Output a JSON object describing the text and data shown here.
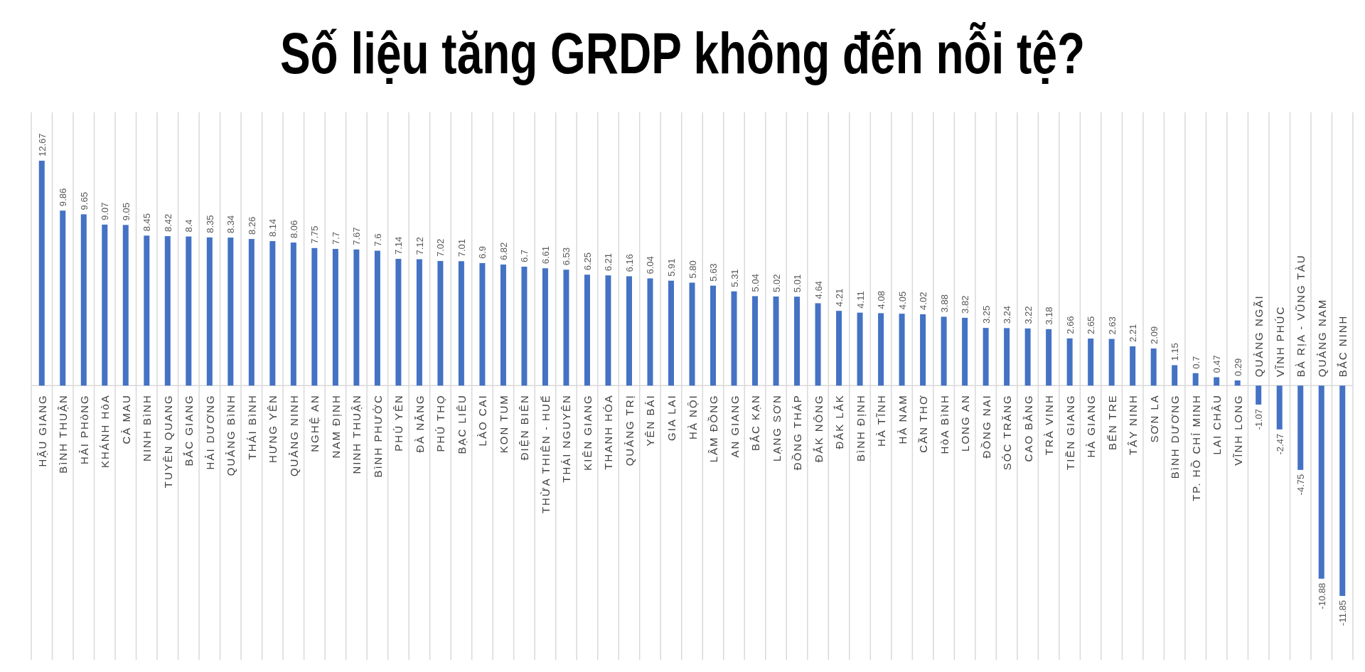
{
  "chart_data": {
    "type": "bar",
    "title": "Số liệu tăng GRDP không đến nỗi tệ?",
    "categories": [
      "HẬU GIANG",
      "BìNH THUẬN",
      "HẢI PHòNG",
      "KHÁNH HòA",
      "CÀ MAU",
      "NINH BìNH",
      "TUYÊN QUANG",
      "BẮC GIANG",
      "HẢI DƯƠNG",
      "QUẢNG BìNH",
      "THÁI BìNH",
      "HƯNG YÊN",
      "QUẢNG NINH",
      "NGHỆ AN",
      "NAM ĐỊNH",
      "NINH THUẬN",
      "BìNH PHƯỚC",
      "PHÚ YÊN",
      "ĐÀ NẴNG",
      "PHÚ THỌ",
      "BẠC LIÊU",
      "LÀO CAI",
      "KON TUM",
      "ĐIỆN BIÊN",
      "THỪA THIÊN - HUẾ",
      "THÁI NGUYÊN",
      "KIÊN GIANG",
      "THANH HÓA",
      "QUẢNG TRỊ",
      "YÊN BÁI",
      "GIA LAI",
      "HÀ NỘI",
      "LÂM ĐỒNG",
      "AN GIANG",
      "BẮC KẠN",
      "LẠNG SƠN",
      "ĐỒNG THÁP",
      "ĐẮK NÔNG",
      "ĐẮK LẮK",
      "BìNH ĐỊNH",
      "HÀ TĨNH",
      "HÀ NAM",
      "CẦN THƠ",
      "HòA BìNH",
      "LONG AN",
      "ĐỒNG NAI",
      "SÓC TRĂNG",
      "CAO BẰNG",
      "TRÀ VINH",
      "TIỀN GIANG",
      "HÀ GIANG",
      "BẾN TRE",
      "TÂY NINH",
      "SƠN LA",
      "BìNH DƯƠNG",
      "TP. HỒ CHÍ MINH",
      "LAI CHÂU",
      "VĨNH LONG",
      "QUẢNG NGÃI",
      "VĨNH PHÚC",
      "BÀ RỊA - VŨNG TÀU",
      "QUẢNG NAM",
      "BẮC NINH"
    ],
    "values": [
      12.67,
      9.86,
      9.65,
      9.07,
      9.05,
      8.45,
      8.42,
      8.4,
      8.35,
      8.34,
      8.26,
      8.14,
      8.06,
      7.75,
      7.7,
      7.67,
      7.6,
      7.14,
      7.12,
      7.02,
      7.01,
      6.9,
      6.82,
      6.7,
      6.61,
      6.53,
      6.25,
      6.21,
      6.16,
      6.04,
      5.91,
      5.8,
      5.63,
      5.31,
      5.04,
      5.02,
      5.01,
      4.64,
      4.21,
      4.11,
      4.08,
      4.05,
      4.02,
      3.88,
      3.82,
      3.25,
      3.24,
      3.22,
      3.18,
      2.66,
      2.65,
      2.63,
      2.21,
      2.09,
      1.15,
      0.7,
      0.47,
      0.29,
      -1.07,
      -2.47,
      -4.75,
      -10.88,
      -11.85
    ],
    "value_labels": [
      "12.67",
      "9.86",
      "9.65",
      "9.07",
      "9.05",
      "8.45",
      "8.42",
      "8.4",
      "8.35",
      "8.34",
      "8.26",
      "8.14",
      "8.06",
      "7.75",
      "7.7",
      "7.67",
      "7.6",
      "7.14",
      "7.12",
      "7.02",
      "7.01",
      "6.9",
      "6.82",
      "6.7",
      "6.61",
      "6.53",
      "6.25",
      "6.21",
      "6.16",
      "6.04",
      "5.91",
      "5.80",
      "5.63",
      "5.31",
      "5.04",
      "5.02",
      "5.01",
      "4.64",
      "4.21",
      "4.11",
      "4.08",
      "4.05",
      "4.02",
      "3.88",
      "3.82",
      "3.25",
      "3.24",
      "3.22",
      "3.18",
      "2.66",
      "2.65",
      "2.63",
      "2.21",
      "2.09",
      "1.15",
      "0.7",
      "0.47",
      "0.29",
      "-1.07",
      "-2.47",
      "-4.75",
      "-10.88",
      "-11.85"
    ],
    "color": "#4472c4",
    "grid": "x"
  }
}
